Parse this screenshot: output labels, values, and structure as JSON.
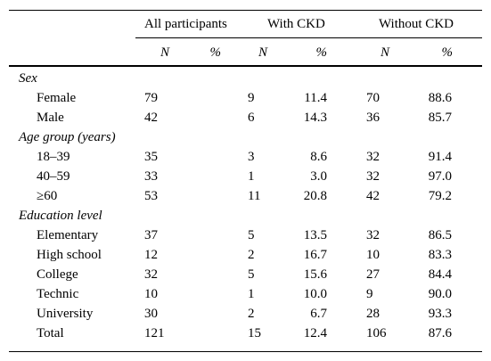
{
  "table": {
    "group_headers": [
      "All participants",
      "With CKD",
      "Without CKD"
    ],
    "sub_headers": [
      "N",
      "%",
      "N",
      "%",
      "N",
      "%"
    ],
    "sections": [
      {
        "title": "Sex",
        "rows": [
          {
            "label": "Female",
            "values": [
              "79",
              "",
              "9",
              "11.4",
              "70",
              "88.6"
            ]
          },
          {
            "label": "Male",
            "values": [
              "42",
              "",
              "6",
              "14.3",
              "36",
              "85.7"
            ]
          }
        ]
      },
      {
        "title": "Age group (years)",
        "rows": [
          {
            "label": "18–39",
            "values": [
              "35",
              "",
              "3",
              "8.6",
              "32",
              "91.4"
            ]
          },
          {
            "label": "40–59",
            "values": [
              "33",
              "",
              "1",
              "3.0",
              "32",
              "97.0"
            ]
          },
          {
            "label": "≥60",
            "values": [
              "53",
              "",
              "11",
              "20.8",
              "42",
              "79.2"
            ]
          }
        ]
      },
      {
        "title": "Education level",
        "rows": [
          {
            "label": "Elementary",
            "values": [
              "37",
              "",
              "5",
              "13.5",
              "32",
              "86.5"
            ]
          },
          {
            "label": "High school",
            "values": [
              "12",
              "",
              "2",
              "16.7",
              "10",
              "83.3"
            ]
          },
          {
            "label": "College",
            "values": [
              "32",
              "",
              "5",
              "15.6",
              "27",
              "84.4"
            ]
          },
          {
            "label": "Technic",
            "values": [
              "10",
              "",
              "1",
              "10.0",
              "9",
              "90.0"
            ]
          },
          {
            "label": "University",
            "values": [
              "30",
              "",
              "2",
              "6.7",
              "28",
              "93.3"
            ]
          },
          {
            "label": "Total",
            "values": [
              "121",
              "",
              "15",
              "12.4",
              "106",
              "87.6"
            ]
          }
        ]
      }
    ]
  }
}
